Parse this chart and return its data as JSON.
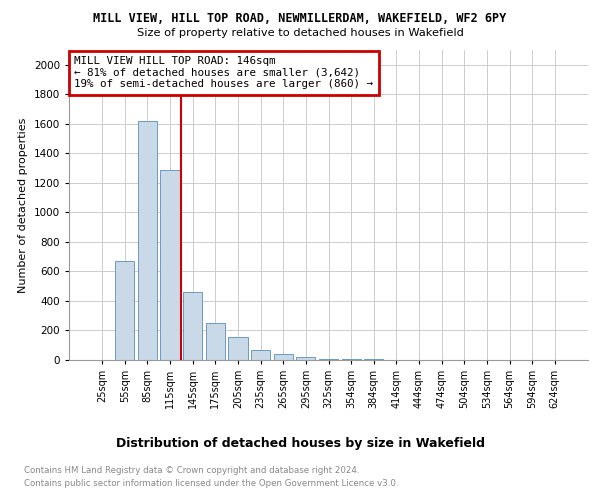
{
  "title": "MILL VIEW, HILL TOP ROAD, NEWMILLERDAM, WAKEFIELD, WF2 6PY",
  "subtitle": "Size of property relative to detached houses in Wakefield",
  "xlabel": "Distribution of detached houses by size in Wakefield",
  "ylabel": "Number of detached properties",
  "categories": [
    "25sqm",
    "55sqm",
    "85sqm",
    "115sqm",
    "145sqm",
    "175sqm",
    "205sqm",
    "235sqm",
    "265sqm",
    "295sqm",
    "325sqm",
    "354sqm",
    "384sqm",
    "414sqm",
    "444sqm",
    "474sqm",
    "504sqm",
    "534sqm",
    "564sqm",
    "594sqm",
    "624sqm"
  ],
  "values": [
    0,
    670,
    1620,
    1290,
    460,
    250,
    155,
    70,
    40,
    20,
    10,
    8,
    5,
    3,
    2,
    1,
    1,
    0,
    0,
    0,
    0
  ],
  "bar_color": "#c9d9e8",
  "bar_edge_color": "#5b8db8",
  "annotation_box_text": "MILL VIEW HILL TOP ROAD: 146sqm\n← 81% of detached houses are smaller (3,642)\n19% of semi-detached houses are larger (860) →",
  "annotation_box_color": "#cc0000",
  "vline_color": "#cc0000",
  "vline_x": 3.5,
  "ylim": [
    0,
    2100
  ],
  "yticks": [
    0,
    200,
    400,
    600,
    800,
    1000,
    1200,
    1400,
    1600,
    1800,
    2000
  ],
  "footer_line1": "Contains HM Land Registry data © Crown copyright and database right 2024.",
  "footer_line2": "Contains public sector information licensed under the Open Government Licence v3.0.",
  "bg_color": "#ffffff",
  "grid_color": "#cccccc"
}
